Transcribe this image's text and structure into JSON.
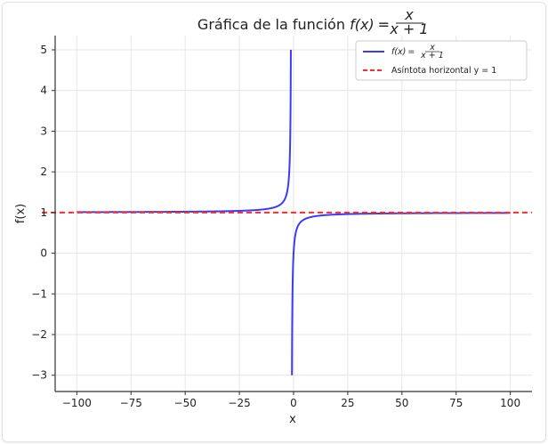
{
  "chart_data": {
    "type": "line",
    "title": {
      "prefix": "Gráfica de la función ",
      "fx": "f(x)",
      "equals": "=",
      "numerator": "x",
      "denominator": "x + 1"
    },
    "xlabel": "x",
    "ylabel": "f(x)",
    "xlim": [
      -110,
      110
    ],
    "ylim": [
      -3.4,
      5.35
    ],
    "x_ticks": [
      -100,
      -75,
      -50,
      -25,
      0,
      25,
      50,
      75,
      100
    ],
    "x_tick_labels": [
      "−100",
      "−75",
      "−50",
      "−25",
      "0",
      "25",
      "50",
      "75",
      "100"
    ],
    "y_ticks": [
      -3,
      -2,
      -1,
      0,
      1,
      2,
      3,
      4,
      5
    ],
    "y_tick_labels": [
      "−3",
      "−2",
      "−1",
      "0",
      "1",
      "2",
      "3",
      "4",
      "5"
    ],
    "grid": true,
    "legend_position": "top-right",
    "series": [
      {
        "name_parts": {
          "fx": "f(x)",
          "equals": "=",
          "numerator": "x",
          "denominator": "x + 1"
        },
        "kind": "function",
        "formula": "x / (x + 1)",
        "domain": [
          -100,
          100
        ],
        "excluded_x": -1,
        "clip_y": [
          -3,
          5
        ],
        "color": "#3b3bff",
        "style": "solid",
        "sample_points": [
          [
            -100,
            1.0101
          ],
          [
            -50,
            1.0204
          ],
          [
            -25,
            1.0417
          ],
          [
            -10,
            1.1111
          ],
          [
            -5,
            1.25
          ],
          [
            -2,
            2
          ],
          [
            -1.5,
            3
          ],
          [
            -1.25,
            5
          ],
          [
            -0.75,
            -3
          ],
          [
            -0.5,
            -1
          ],
          [
            0,
            0
          ],
          [
            1,
            0.5
          ],
          [
            5,
            0.8333
          ],
          [
            10,
            0.9091
          ],
          [
            25,
            0.9615
          ],
          [
            50,
            0.9804
          ],
          [
            100,
            0.9901
          ]
        ]
      },
      {
        "name": "Asíntota horizontal y = 1",
        "kind": "horizontal_line",
        "y": 1,
        "color": "#ff2a2a",
        "style": "dashed"
      }
    ]
  }
}
